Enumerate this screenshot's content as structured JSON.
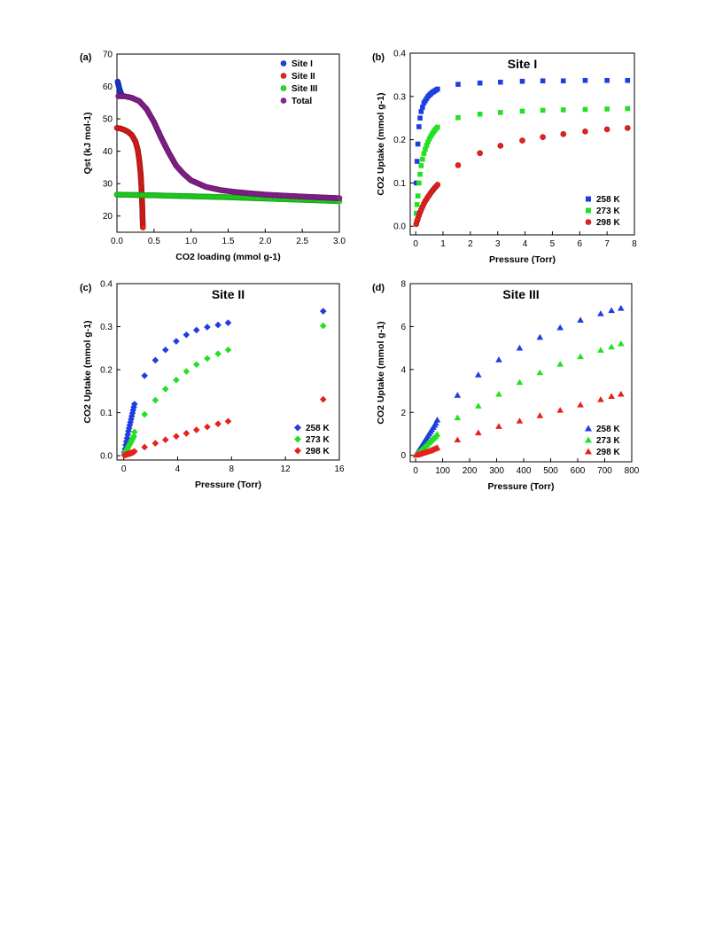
{
  "chart_data": [
    {
      "panel": "(a)",
      "type": "scatter",
      "title": "",
      "xlabel": "CO2 loading (mmol g-1)",
      "ylabel": "Qst (kJ mol-1)",
      "xlim": [
        0.0,
        3.0
      ],
      "ylim": [
        15,
        70
      ],
      "xticks": [
        "0.0",
        "0.5",
        "1.0",
        "1.5",
        "2.0",
        "2.5",
        "3.0"
      ],
      "yticks": [
        "20",
        "30",
        "40",
        "50",
        "60",
        "70"
      ],
      "legend_position": "top-right",
      "series": [
        {
          "name": "Site I",
          "color": "#1f3de0",
          "marker": "circle",
          "x": [
            0.01,
            0.02,
            0.03,
            0.04,
            0.05,
            0.06,
            0.07
          ],
          "y": [
            61.5,
            60.5,
            59.6,
            58.8,
            58.2,
            57.6,
            57.0
          ]
        },
        {
          "name": "Site II",
          "color": "#e8201c",
          "marker": "circle",
          "x": [
            0.0,
            0.05,
            0.1,
            0.15,
            0.2,
            0.25,
            0.28,
            0.3,
            0.32,
            0.33,
            0.34,
            0.345,
            0.35
          ],
          "y": [
            47.2,
            47.0,
            46.6,
            46.0,
            45.0,
            43.0,
            40.5,
            37.5,
            33.0,
            29.0,
            24.0,
            20.0,
            16.5
          ]
        },
        {
          "name": "Site III",
          "color": "#22e022",
          "marker": "circle",
          "x": [
            0.0,
            0.5,
            1.0,
            1.5,
            2.0,
            2.5,
            3.0
          ],
          "y": [
            26.6,
            26.4,
            26.1,
            25.8,
            25.4,
            25.0,
            24.6
          ]
        },
        {
          "name": "Total",
          "color": "#8e2396",
          "marker": "circle",
          "x": [
            0.02,
            0.1,
            0.2,
            0.3,
            0.4,
            0.5,
            0.6,
            0.7,
            0.8,
            0.9,
            1.0,
            1.2,
            1.4,
            1.6,
            1.8,
            2.0,
            2.5,
            3.0
          ],
          "y": [
            57.0,
            57.0,
            56.5,
            55.5,
            53.0,
            49.0,
            44.0,
            39.5,
            35.5,
            33.0,
            31.0,
            29.0,
            28.0,
            27.4,
            27.0,
            26.6,
            26.0,
            25.5
          ]
        }
      ]
    },
    {
      "panel": "(b)",
      "type": "scatter",
      "title": "Site I",
      "xlabel": "Pressure (Torr)",
      "ylabel": "CO2 Uptake (mmol g-1)",
      "xlim": [
        -0.2,
        8.0
      ],
      "ylim": [
        -0.02,
        0.4
      ],
      "xticks": [
        "0",
        "1",
        "2",
        "3",
        "4",
        "5",
        "6",
        "7",
        "8"
      ],
      "yticks": [
        "0.0",
        "0.1",
        "0.2",
        "0.3",
        "0.4"
      ],
      "legend_position": "bottom-right",
      "series": [
        {
          "name": "258 K",
          "color": "#1f3de0",
          "marker": "square",
          "x": [
            0.02,
            0.05,
            0.08,
            0.12,
            0.16,
            0.2,
            0.25,
            0.3,
            0.35,
            0.4,
            0.45,
            0.5,
            0.55,
            0.6,
            0.65,
            0.7,
            0.75,
            0.8,
            1.55,
            2.35,
            3.1,
            3.9,
            4.65,
            5.4,
            6.2,
            7.0,
            7.75
          ],
          "y": [
            0.1,
            0.15,
            0.19,
            0.23,
            0.25,
            0.265,
            0.275,
            0.285,
            0.29,
            0.295,
            0.3,
            0.303,
            0.306,
            0.309,
            0.311,
            0.313,
            0.315,
            0.317,
            0.328,
            0.331,
            0.333,
            0.335,
            0.336,
            0.336,
            0.337,
            0.337,
            0.337
          ]
        },
        {
          "name": "273 K",
          "color": "#22e022",
          "marker": "square",
          "x": [
            0.02,
            0.05,
            0.08,
            0.12,
            0.16,
            0.2,
            0.25,
            0.3,
            0.35,
            0.4,
            0.45,
            0.5,
            0.55,
            0.6,
            0.65,
            0.7,
            0.75,
            0.8,
            1.55,
            2.35,
            3.1,
            3.9,
            4.65,
            5.4,
            6.2,
            7.0,
            7.75
          ],
          "y": [
            0.03,
            0.05,
            0.07,
            0.1,
            0.12,
            0.14,
            0.155,
            0.168,
            0.178,
            0.187,
            0.195,
            0.202,
            0.208,
            0.213,
            0.218,
            0.222,
            0.226,
            0.229,
            0.251,
            0.259,
            0.263,
            0.266,
            0.268,
            0.269,
            0.27,
            0.271,
            0.272
          ]
        },
        {
          "name": "298 K",
          "color": "#e8201c",
          "marker": "circle",
          "x": [
            0.02,
            0.05,
            0.08,
            0.12,
            0.16,
            0.2,
            0.25,
            0.3,
            0.35,
            0.4,
            0.45,
            0.5,
            0.55,
            0.6,
            0.65,
            0.7,
            0.75,
            0.8,
            1.55,
            2.35,
            3.1,
            3.9,
            4.65,
            5.4,
            6.2,
            7.0,
            7.75
          ],
          "y": [
            0.005,
            0.012,
            0.018,
            0.025,
            0.032,
            0.038,
            0.045,
            0.052,
            0.058,
            0.063,
            0.068,
            0.072,
            0.077,
            0.081,
            0.085,
            0.089,
            0.092,
            0.096,
            0.141,
            0.169,
            0.186,
            0.198,
            0.206,
            0.213,
            0.219,
            0.224,
            0.227
          ]
        }
      ]
    },
    {
      "panel": "(c)",
      "type": "scatter",
      "title": "Site II",
      "xlabel": "Pressure (Torr)",
      "ylabel": "CO2 Uptake (mmol g-1)",
      "xlim": [
        -0.5,
        16.0
      ],
      "ylim": [
        -0.01,
        0.4
      ],
      "xticks": [
        "0",
        "4",
        "8",
        "12",
        "16"
      ],
      "yticks": [
        "0.0",
        "0.1",
        "0.2",
        "0.3",
        "0.4"
      ],
      "legend_position": "bottom-right",
      "series": [
        {
          "name": "258 K",
          "color": "#1f3de0",
          "marker": "diamond",
          "x": [
            0.05,
            0.1,
            0.15,
            0.2,
            0.25,
            0.3,
            0.35,
            0.4,
            0.45,
            0.5,
            0.55,
            0.6,
            0.65,
            0.7,
            0.75,
            0.8,
            1.55,
            2.35,
            3.1,
            3.9,
            4.65,
            5.4,
            6.2,
            7.0,
            7.75,
            14.8
          ],
          "y": [
            0.008,
            0.016,
            0.025,
            0.033,
            0.041,
            0.049,
            0.057,
            0.064,
            0.071,
            0.078,
            0.085,
            0.092,
            0.099,
            0.106,
            0.113,
            0.12,
            0.186,
            0.222,
            0.246,
            0.266,
            0.281,
            0.292,
            0.299,
            0.304,
            0.309,
            0.336
          ]
        },
        {
          "name": "273 K",
          "color": "#22e022",
          "marker": "diamond",
          "x": [
            0.05,
            0.1,
            0.15,
            0.2,
            0.25,
            0.3,
            0.35,
            0.4,
            0.45,
            0.5,
            0.55,
            0.6,
            0.65,
            0.7,
            0.75,
            0.8,
            1.55,
            2.35,
            3.1,
            3.9,
            4.65,
            5.4,
            6.2,
            7.0,
            7.75,
            14.8
          ],
          "y": [
            0.003,
            0.006,
            0.009,
            0.012,
            0.015,
            0.018,
            0.021,
            0.024,
            0.027,
            0.03,
            0.033,
            0.036,
            0.039,
            0.042,
            0.045,
            0.055,
            0.096,
            0.129,
            0.155,
            0.176,
            0.196,
            0.212,
            0.226,
            0.237,
            0.246,
            0.302
          ]
        },
        {
          "name": "298 K",
          "color": "#e8201c",
          "marker": "diamond",
          "x": [
            0.05,
            0.1,
            0.15,
            0.2,
            0.25,
            0.3,
            0.35,
            0.4,
            0.45,
            0.5,
            0.55,
            0.6,
            0.65,
            0.7,
            0.75,
            0.8,
            1.55,
            2.35,
            3.1,
            3.9,
            4.65,
            5.4,
            6.2,
            7.0,
            7.75,
            14.8
          ],
          "y": [
            0.001,
            0.002,
            0.002,
            0.003,
            0.003,
            0.004,
            0.004,
            0.005,
            0.005,
            0.006,
            0.006,
            0.007,
            0.007,
            0.008,
            0.009,
            0.01,
            0.02,
            0.029,
            0.037,
            0.045,
            0.052,
            0.06,
            0.067,
            0.074,
            0.08,
            0.131
          ]
        }
      ]
    },
    {
      "panel": "(d)",
      "type": "scatter",
      "title": "Site III",
      "xlabel": "Pressure (Torr)",
      "ylabel": "CO2 Uptake (mmol g-1)",
      "xlim": [
        -20,
        800
      ],
      "ylim": [
        -0.3,
        8.0
      ],
      "xticks": [
        "0",
        "100",
        "200",
        "300",
        "400",
        "500",
        "600",
        "700",
        "800"
      ],
      "yticks": [
        "0",
        "2",
        "4",
        "6",
        "8"
      ],
      "legend_position": "bottom-right",
      "series": [
        {
          "name": "258 K",
          "color": "#1f3de0",
          "marker": "triangle",
          "x": [
            2,
            5,
            10,
            15,
            20,
            25,
            30,
            35,
            40,
            45,
            50,
            55,
            60,
            65,
            70,
            75,
            80,
            155,
            232,
            308,
            385,
            460,
            535,
            610,
            685,
            725,
            760
          ],
          "y": [
            0.04,
            0.1,
            0.2,
            0.3,
            0.4,
            0.5,
            0.6,
            0.7,
            0.8,
            0.9,
            1.0,
            1.1,
            1.2,
            1.3,
            1.4,
            1.5,
            1.65,
            2.8,
            3.75,
            4.45,
            5.0,
            5.5,
            5.95,
            6.3,
            6.6,
            6.75,
            6.85
          ]
        },
        {
          "name": "273 K",
          "color": "#22e022",
          "marker": "triangle",
          "x": [
            2,
            5,
            10,
            15,
            20,
            25,
            30,
            35,
            40,
            45,
            50,
            55,
            60,
            65,
            70,
            75,
            80,
            155,
            232,
            308,
            385,
            460,
            535,
            610,
            685,
            725,
            760
          ],
          "y": [
            0.03,
            0.06,
            0.12,
            0.18,
            0.24,
            0.3,
            0.36,
            0.42,
            0.48,
            0.54,
            0.6,
            0.66,
            0.72,
            0.78,
            0.84,
            0.9,
            0.98,
            1.75,
            2.3,
            2.85,
            3.4,
            3.85,
            4.25,
            4.6,
            4.9,
            5.05,
            5.2
          ]
        },
        {
          "name": "298 K",
          "color": "#e8201c",
          "marker": "triangle",
          "x": [
            2,
            5,
            10,
            15,
            20,
            25,
            30,
            35,
            40,
            45,
            50,
            55,
            60,
            65,
            70,
            75,
            80,
            155,
            232,
            308,
            385,
            460,
            535,
            610,
            685,
            725,
            760
          ],
          "y": [
            0.01,
            0.02,
            0.04,
            0.06,
            0.08,
            0.1,
            0.12,
            0.14,
            0.16,
            0.18,
            0.2,
            0.22,
            0.25,
            0.28,
            0.3,
            0.33,
            0.36,
            0.72,
            1.05,
            1.35,
            1.6,
            1.85,
            2.1,
            2.35,
            2.6,
            2.75,
            2.85
          ]
        }
      ]
    }
  ]
}
